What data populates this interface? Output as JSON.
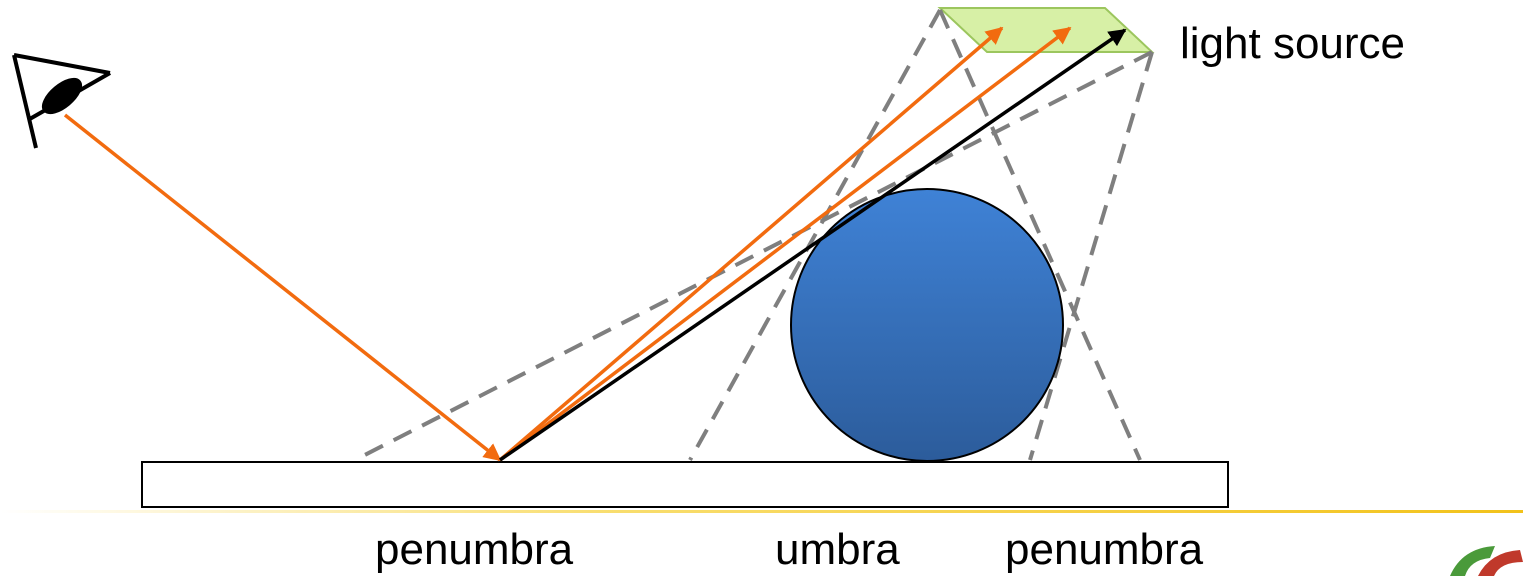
{
  "labels": {
    "light_source": "light source",
    "penumbra_left": "penumbra",
    "umbra": "umbra",
    "penumbra_right": "penumbra"
  }
}
